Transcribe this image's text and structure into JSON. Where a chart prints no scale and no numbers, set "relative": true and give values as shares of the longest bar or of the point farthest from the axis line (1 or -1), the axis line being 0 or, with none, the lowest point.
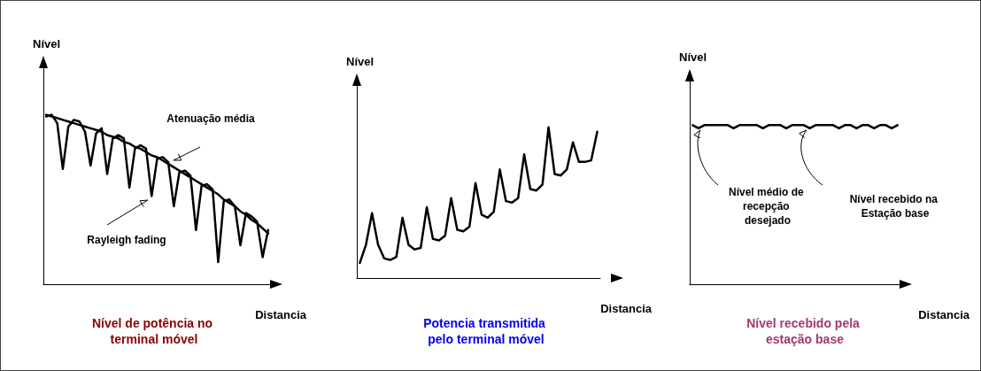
{
  "chart_data": [
    {
      "type": "line",
      "title": "Nível de potência no terminal móvel",
      "xlabel": "Distancia",
      "ylabel": "Nível",
      "relative": true,
      "annotations": [
        "Atenuação média",
        "Rayleigh fading"
      ],
      "categories": [
        null,
        null,
        null,
        null,
        null,
        null,
        null,
        null,
        null,
        null,
        null,
        null,
        null,
        null,
        null,
        null,
        null,
        null,
        null,
        null,
        null,
        null,
        null,
        null,
        null,
        null,
        null,
        null,
        null,
        null,
        null,
        null,
        null,
        null,
        null,
        null,
        null,
        null,
        null,
        null,
        null
      ],
      "series": [
        {
          "color": "#000000",
          "values": [
            1.0,
            0.99,
            0.98,
            0.97,
            0.96,
            0.95,
            0.94,
            0.93,
            0.92,
            0.91,
            0.9,
            0.88,
            0.87,
            0.86,
            0.84,
            0.83,
            0.81,
            0.8,
            0.78,
            0.76,
            0.75,
            0.73,
            0.71,
            0.69,
            0.67,
            0.65,
            0.63,
            0.61,
            0.59,
            0.57,
            0.55,
            0.53,
            0.5,
            0.48,
            0.46,
            0.43,
            0.41,
            0.38,
            0.36,
            0.33,
            0.3
          ]
        },
        {
          "color": "#000000",
          "values": [
            0.99,
            1.0,
            0.95,
            0.68,
            0.93,
            0.97,
            0.96,
            0.9,
            0.7,
            0.89,
            0.92,
            0.65,
            0.86,
            0.88,
            0.86,
            0.57,
            0.8,
            0.82,
            0.8,
            0.52,
            0.74,
            0.75,
            0.72,
            0.46,
            0.66,
            0.67,
            0.64,
            0.32,
            0.58,
            0.59,
            0.56,
            0.13,
            0.49,
            0.5,
            0.46,
            0.23,
            0.42,
            0.4,
            0.37,
            0.16,
            0.32
          ]
        }
      ]
    },
    {
      "type": "line",
      "title": "Potencia transmitida pelo terminal móvel",
      "xlabel": "Distancia",
      "ylabel": "Nível",
      "relative": true,
      "categories": [
        null,
        null,
        null,
        null,
        null,
        null,
        null,
        null,
        null,
        null,
        null,
        null,
        null,
        null,
        null,
        null,
        null,
        null,
        null,
        null,
        null,
        null,
        null,
        null,
        null,
        null,
        null,
        null,
        null,
        null,
        null,
        null,
        null,
        null,
        null,
        null,
        null,
        null,
        null,
        null
      ],
      "series": [
        {
          "color": "#000000",
          "values": [
            0.1,
            0.22,
            0.43,
            0.22,
            0.13,
            0.12,
            0.14,
            0.4,
            0.22,
            0.19,
            0.2,
            0.47,
            0.26,
            0.25,
            0.28,
            0.53,
            0.32,
            0.31,
            0.34,
            0.63,
            0.42,
            0.4,
            0.44,
            0.72,
            0.51,
            0.5,
            0.53,
            0.82,
            0.59,
            0.58,
            0.62,
            1.0,
            0.69,
            0.68,
            0.72,
            0.9,
            0.77,
            0.77,
            0.78,
            0.97
          ]
        }
      ]
    },
    {
      "type": "line",
      "title": "Nível recebido pela estação base",
      "xlabel": "Distancia",
      "ylabel": "Nível",
      "relative": true,
      "annotations": [
        "Nível médio de recepção desejado",
        "Nível recebido na Estação base"
      ],
      "categories": [
        null,
        null,
        null,
        null,
        null,
        null,
        null,
        null,
        null,
        null,
        null,
        null,
        null,
        null,
        null,
        null,
        null,
        null,
        null,
        null,
        null,
        null,
        null,
        null,
        null,
        null,
        null,
        null,
        null,
        null,
        null,
        null,
        null,
        null,
        null,
        null
      ],
      "series": [
        {
          "color": "#000000",
          "values": [
            1,
            0.98,
            1,
            1,
            1,
            1,
            1,
            0.98,
            1,
            1,
            1,
            1,
            0.98,
            1,
            1,
            1,
            0.98,
            1,
            1,
            1,
            0.98,
            1,
            1,
            1,
            1,
            0.98,
            1,
            1,
            0.98,
            1,
            1,
            0.98,
            1,
            1,
            0.98,
            1
          ]
        }
      ]
    }
  ]
}
